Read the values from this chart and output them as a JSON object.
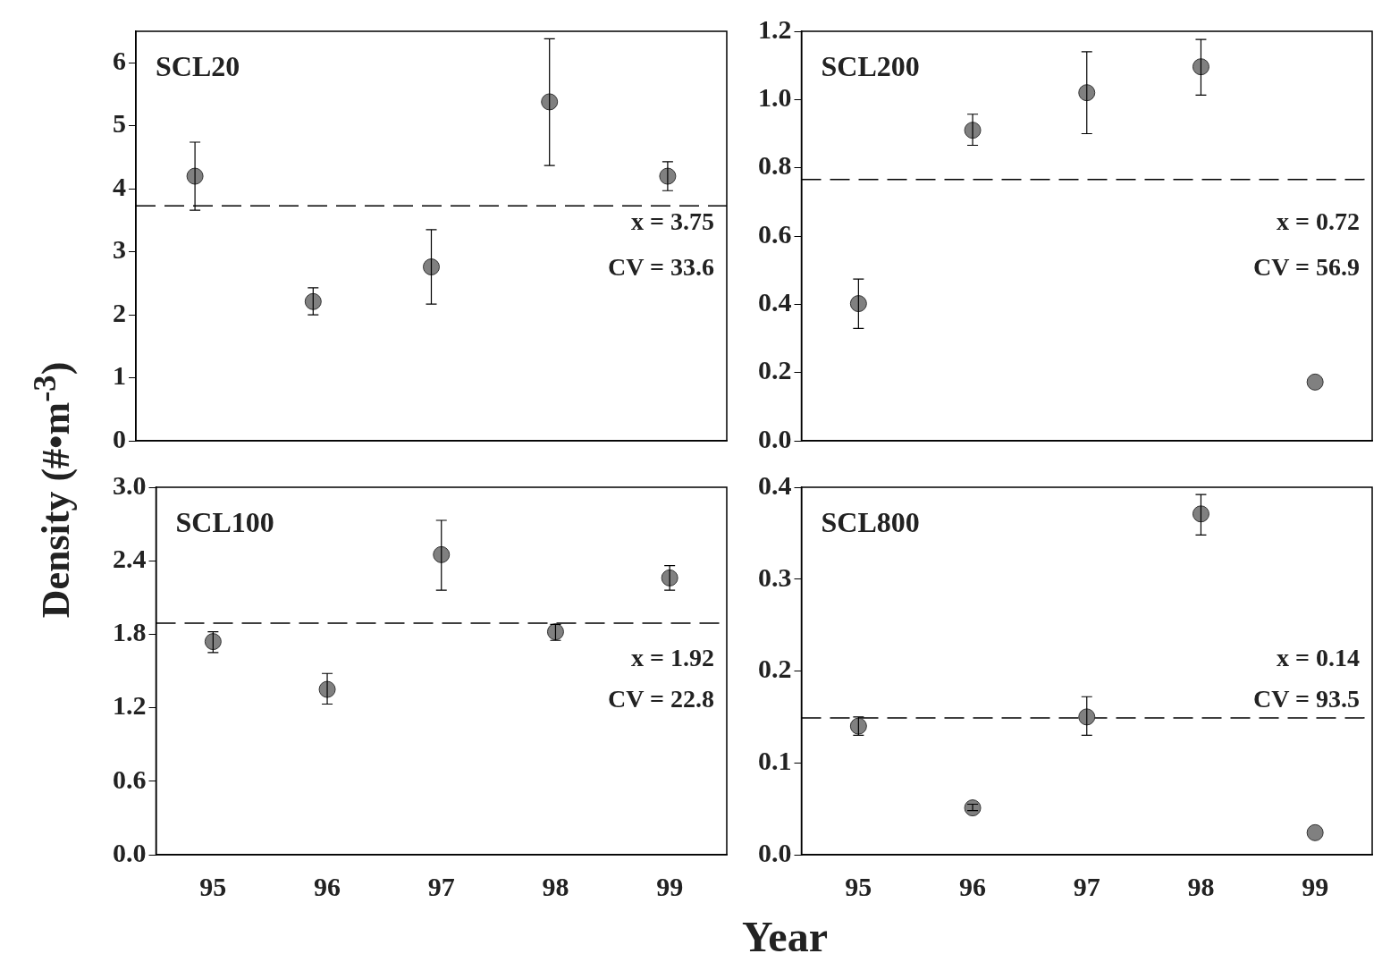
{
  "chart_data": [
    {
      "type": "scatter",
      "ylabel": "Density (#•m$^{-3}$)",
      "categories": [
        "95",
        "96",
        "97",
        "98",
        "99"
      ],
      "ylim": [
        0,
        6.5
      ],
      "yticks": [
        0,
        1,
        2,
        3,
        4,
        5,
        6
      ],
      "tick_labels": "y",
      "grid": false,
      "legend": false,
      "marker": "circle",
      "series": [
        {
          "color": "#808080",
          "values": [
            4.2,
            2.21,
            2.76,
            5.38,
            4.2
          ],
          "errors": [
            [
              3.66,
              4.74
            ],
            [
              2.0,
              2.43
            ],
            [
              2.17,
              3.35
            ],
            [
              4.37,
              6.38
            ],
            [
              3.97,
              4.43
            ]
          ]
        }
      ],
      "ref_lines": [
        {
          "axis": "y",
          "value": 3.73,
          "line_style": "dashed",
          "color": "#000000"
        }
      ],
      "annotations": [
        "SCL20",
        "x = 3.75",
        "CV = 33.6"
      ]
    },
    {
      "type": "scatter",
      "categories": [
        "95",
        "96",
        "97",
        "98",
        "99"
      ],
      "ylim": [
        0,
        1.2
      ],
      "yticks": [
        {
          "value": 0,
          "label": "0.0"
        },
        {
          "value": 0.2,
          "label": "0.2"
        },
        {
          "value": 0.4,
          "label": "0.4"
        },
        {
          "value": 0.6,
          "label": "0.6"
        },
        {
          "value": 0.8,
          "label": "0.8"
        },
        {
          "value": 1,
          "label": "1.0"
        },
        {
          "value": 1.2,
          "label": "1.2"
        }
      ],
      "tick_labels": "y",
      "grid": false,
      "legend": false,
      "marker": "circle",
      "series": [
        {
          "color": "#808080",
          "values": [
            0.402,
            0.91,
            1.02,
            1.096,
            0.172
          ],
          "errors": [
            [
              0.329,
              0.474
            ],
            [
              0.866,
              0.957
            ],
            [
              0.9,
              1.14
            ],
            [
              1.013,
              1.176
            ],
            null
          ]
        }
      ],
      "ref_lines": [
        {
          "axis": "y",
          "value": 0.766,
          "line_style": "dashed",
          "color": "#000000"
        }
      ],
      "annotations": [
        "SCL200",
        "x = 0.72",
        "CV = 56.9"
      ]
    },
    {
      "type": "scatter",
      "xlabel": "Year",
      "categories": [
        "95",
        "96",
        "97",
        "98",
        "99"
      ],
      "ylim": [
        0,
        3
      ],
      "yticks": [
        {
          "value": 0,
          "label": "0.0"
        },
        {
          "value": 0.6,
          "label": "0.6"
        },
        {
          "value": 1.2,
          "label": "1.2"
        },
        {
          "value": 1.8,
          "label": "1.8"
        },
        {
          "value": 2.4,
          "label": "2.4"
        },
        {
          "value": 3,
          "label": "3.0"
        }
      ],
      "grid": false,
      "legend": false,
      "marker": "circle",
      "series": [
        {
          "color": "#808080",
          "values": [
            1.74,
            1.35,
            2.45,
            1.82,
            2.26
          ],
          "errors": [
            [
              1.65,
              1.82
            ],
            [
              1.23,
              1.48
            ],
            [
              2.16,
              2.73
            ],
            [
              1.75,
              1.88
            ],
            [
              2.16,
              2.36
            ]
          ]
        }
      ],
      "ref_lines": [
        {
          "axis": "y",
          "value": 1.89,
          "line_style": "dashed",
          "color": "#000000"
        }
      ],
      "annotations": [
        "SCL100",
        "x = 1.92",
        "CV = 22.8"
      ]
    },
    {
      "type": "scatter",
      "categories": [
        "95",
        "96",
        "97",
        "98",
        "99"
      ],
      "ylim": [
        0,
        0.4
      ],
      "yticks": [
        {
          "value": 0,
          "label": "0.0"
        },
        0.1,
        0.2,
        0.3,
        0.4
      ],
      "grid": false,
      "legend": false,
      "marker": "circle",
      "series": [
        {
          "color": "#808080",
          "values": [
            0.14,
            0.051,
            0.15,
            0.371,
            0.024
          ],
          "errors": [
            [
              0.13,
              0.15
            ],
            [
              0.048,
              0.055
            ],
            [
              0.13,
              0.172
            ],
            [
              0.348,
              0.392
            ],
            null
          ]
        }
      ],
      "ref_lines": [
        {
          "axis": "y",
          "value": 0.149,
          "line_style": "dashed",
          "color": "#000000"
        }
      ],
      "annotations": [
        "SCL800",
        "x = 0.14",
        "CV = 93.5"
      ]
    }
  ]
}
